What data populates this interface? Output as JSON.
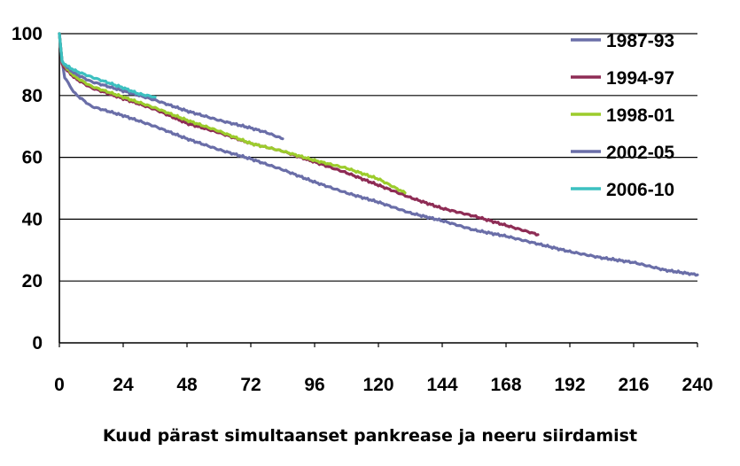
{
  "chart_data": {
    "type": "line",
    "title": "",
    "xlabel": "Kuud pärast simultaanset pankrease ja neeru siirdamist",
    "ylabel": "",
    "xlim": [
      0,
      240
    ],
    "ylim": [
      0,
      100
    ],
    "x_ticks": [
      "0",
      "24",
      "48",
      "72",
      "96",
      "120",
      "144",
      "168",
      "192",
      "216",
      "240"
    ],
    "y_ticks": [
      "0",
      "20",
      "40",
      "60",
      "80",
      "100"
    ],
    "grid": "horizontal",
    "legend_position": "right",
    "series": [
      {
        "name": "1987-93",
        "color": "#6a6ea8",
        "points": [
          [
            0,
            100
          ],
          [
            1,
            91
          ],
          [
            2,
            86
          ],
          [
            4,
            83
          ],
          [
            6,
            80.5
          ],
          [
            9,
            78.5
          ],
          [
            12,
            76.5
          ],
          [
            18,
            75
          ],
          [
            24,
            73.5
          ],
          [
            36,
            70
          ],
          [
            48,
            66
          ],
          [
            60,
            62.5
          ],
          [
            72,
            59.5
          ],
          [
            84,
            56
          ],
          [
            96,
            52
          ],
          [
            108,
            48.5
          ],
          [
            120,
            45.5
          ],
          [
            132,
            42
          ],
          [
            144,
            39.5
          ],
          [
            156,
            36.5
          ],
          [
            168,
            34.5
          ],
          [
            180,
            32
          ],
          [
            192,
            29.5
          ],
          [
            204,
            27.5
          ],
          [
            216,
            26
          ],
          [
            228,
            23.5
          ],
          [
            240,
            22
          ]
        ]
      },
      {
        "name": "1994-97",
        "color": "#8e2c55",
        "points": [
          [
            0,
            100
          ],
          [
            1,
            90
          ],
          [
            3,
            88
          ],
          [
            6,
            85.5
          ],
          [
            12,
            82.5
          ],
          [
            24,
            79
          ],
          [
            36,
            75.5
          ],
          [
            48,
            71
          ],
          [
            60,
            68
          ],
          [
            72,
            64.5
          ],
          [
            84,
            62
          ],
          [
            96,
            58.5
          ],
          [
            108,
            55
          ],
          [
            120,
            51
          ],
          [
            132,
            47
          ],
          [
            144,
            43.5
          ],
          [
            156,
            41
          ],
          [
            168,
            38
          ],
          [
            180,
            35
          ]
        ]
      },
      {
        "name": "1998-01",
        "color": "#9ccc2c",
        "points": [
          [
            0,
            100
          ],
          [
            1,
            91
          ],
          [
            3,
            88.5
          ],
          [
            6,
            86
          ],
          [
            12,
            83
          ],
          [
            24,
            79.5
          ],
          [
            36,
            76
          ],
          [
            48,
            72
          ],
          [
            60,
            68.5
          ],
          [
            72,
            64.5
          ],
          [
            84,
            62
          ],
          [
            96,
            59
          ],
          [
            108,
            56.5
          ],
          [
            120,
            53
          ],
          [
            130,
            48.5
          ]
        ]
      },
      {
        "name": "2002-05",
        "color": "#6a6ea8",
        "points": [
          [
            0,
            100
          ],
          [
            1,
            91
          ],
          [
            3,
            89
          ],
          [
            6,
            87
          ],
          [
            12,
            84.5
          ],
          [
            24,
            81.5
          ],
          [
            36,
            78.5
          ],
          [
            48,
            75
          ],
          [
            60,
            72
          ],
          [
            72,
            69.5
          ],
          [
            78,
            68
          ],
          [
            84,
            66
          ]
        ]
      },
      {
        "name": "2006-10",
        "color": "#3cc0c0",
        "points": [
          [
            0,
            100
          ],
          [
            1,
            91
          ],
          [
            3,
            89.5
          ],
          [
            6,
            88
          ],
          [
            12,
            86
          ],
          [
            24,
            82.5
          ],
          [
            30,
            80.5
          ],
          [
            36,
            79.5
          ]
        ]
      }
    ]
  }
}
